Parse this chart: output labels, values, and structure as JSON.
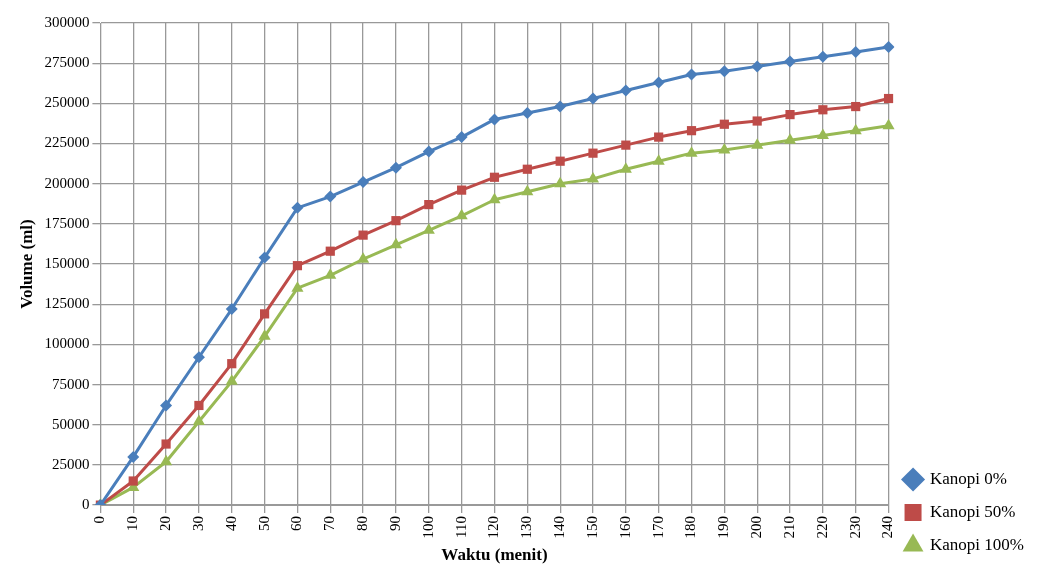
{
  "chart_data": {
    "type": "line",
    "xlabel": "Waktu (menit)",
    "ylabel": "Volume (ml)",
    "categories": [
      "0",
      "10",
      "20",
      "30",
      "40",
      "50",
      "60",
      "70",
      "80",
      "90",
      "100",
      "110",
      "120",
      "130",
      "140",
      "150",
      "160",
      "170",
      "180",
      "190",
      "200",
      "210",
      "220",
      "230",
      "240"
    ],
    "series": [
      {
        "name": "Kanopi 0%",
        "color": "#4a7ebb",
        "marker": "diamond",
        "values": [
          0,
          30000,
          62000,
          92000,
          122000,
          154000,
          185000,
          192000,
          201000,
          210000,
          220000,
          229000,
          240000,
          244000,
          248000,
          253000,
          258000,
          263000,
          268000,
          270000,
          273000,
          276000,
          279000,
          282000,
          285000
        ]
      },
      {
        "name": "Kanopi 50%",
        "color": "#be4b48",
        "marker": "square",
        "values": [
          0,
          15000,
          38000,
          62000,
          88000,
          119000,
          149000,
          158000,
          168000,
          177000,
          187000,
          196000,
          204000,
          209000,
          214000,
          219000,
          224000,
          229000,
          233000,
          237000,
          239000,
          243000,
          246000,
          248000,
          253000
        ]
      },
      {
        "name": "Kanopi 100%",
        "color": "#98b954",
        "marker": "triangle",
        "values": [
          0,
          11000,
          27000,
          52000,
          77000,
          105000,
          135000,
          143000,
          153000,
          162000,
          171000,
          180000,
          190000,
          195000,
          200000,
          203000,
          209000,
          214000,
          219000,
          221000,
          224000,
          227000,
          230000,
          233000,
          236000
        ]
      }
    ],
    "ylim": [
      0,
      300000
    ],
    "yticks": [
      0,
      25000,
      50000,
      75000,
      100000,
      125000,
      150000,
      175000,
      200000,
      225000,
      250000,
      275000,
      300000
    ],
    "grid": true,
    "legend": "right",
    "line_style": "solid"
  }
}
